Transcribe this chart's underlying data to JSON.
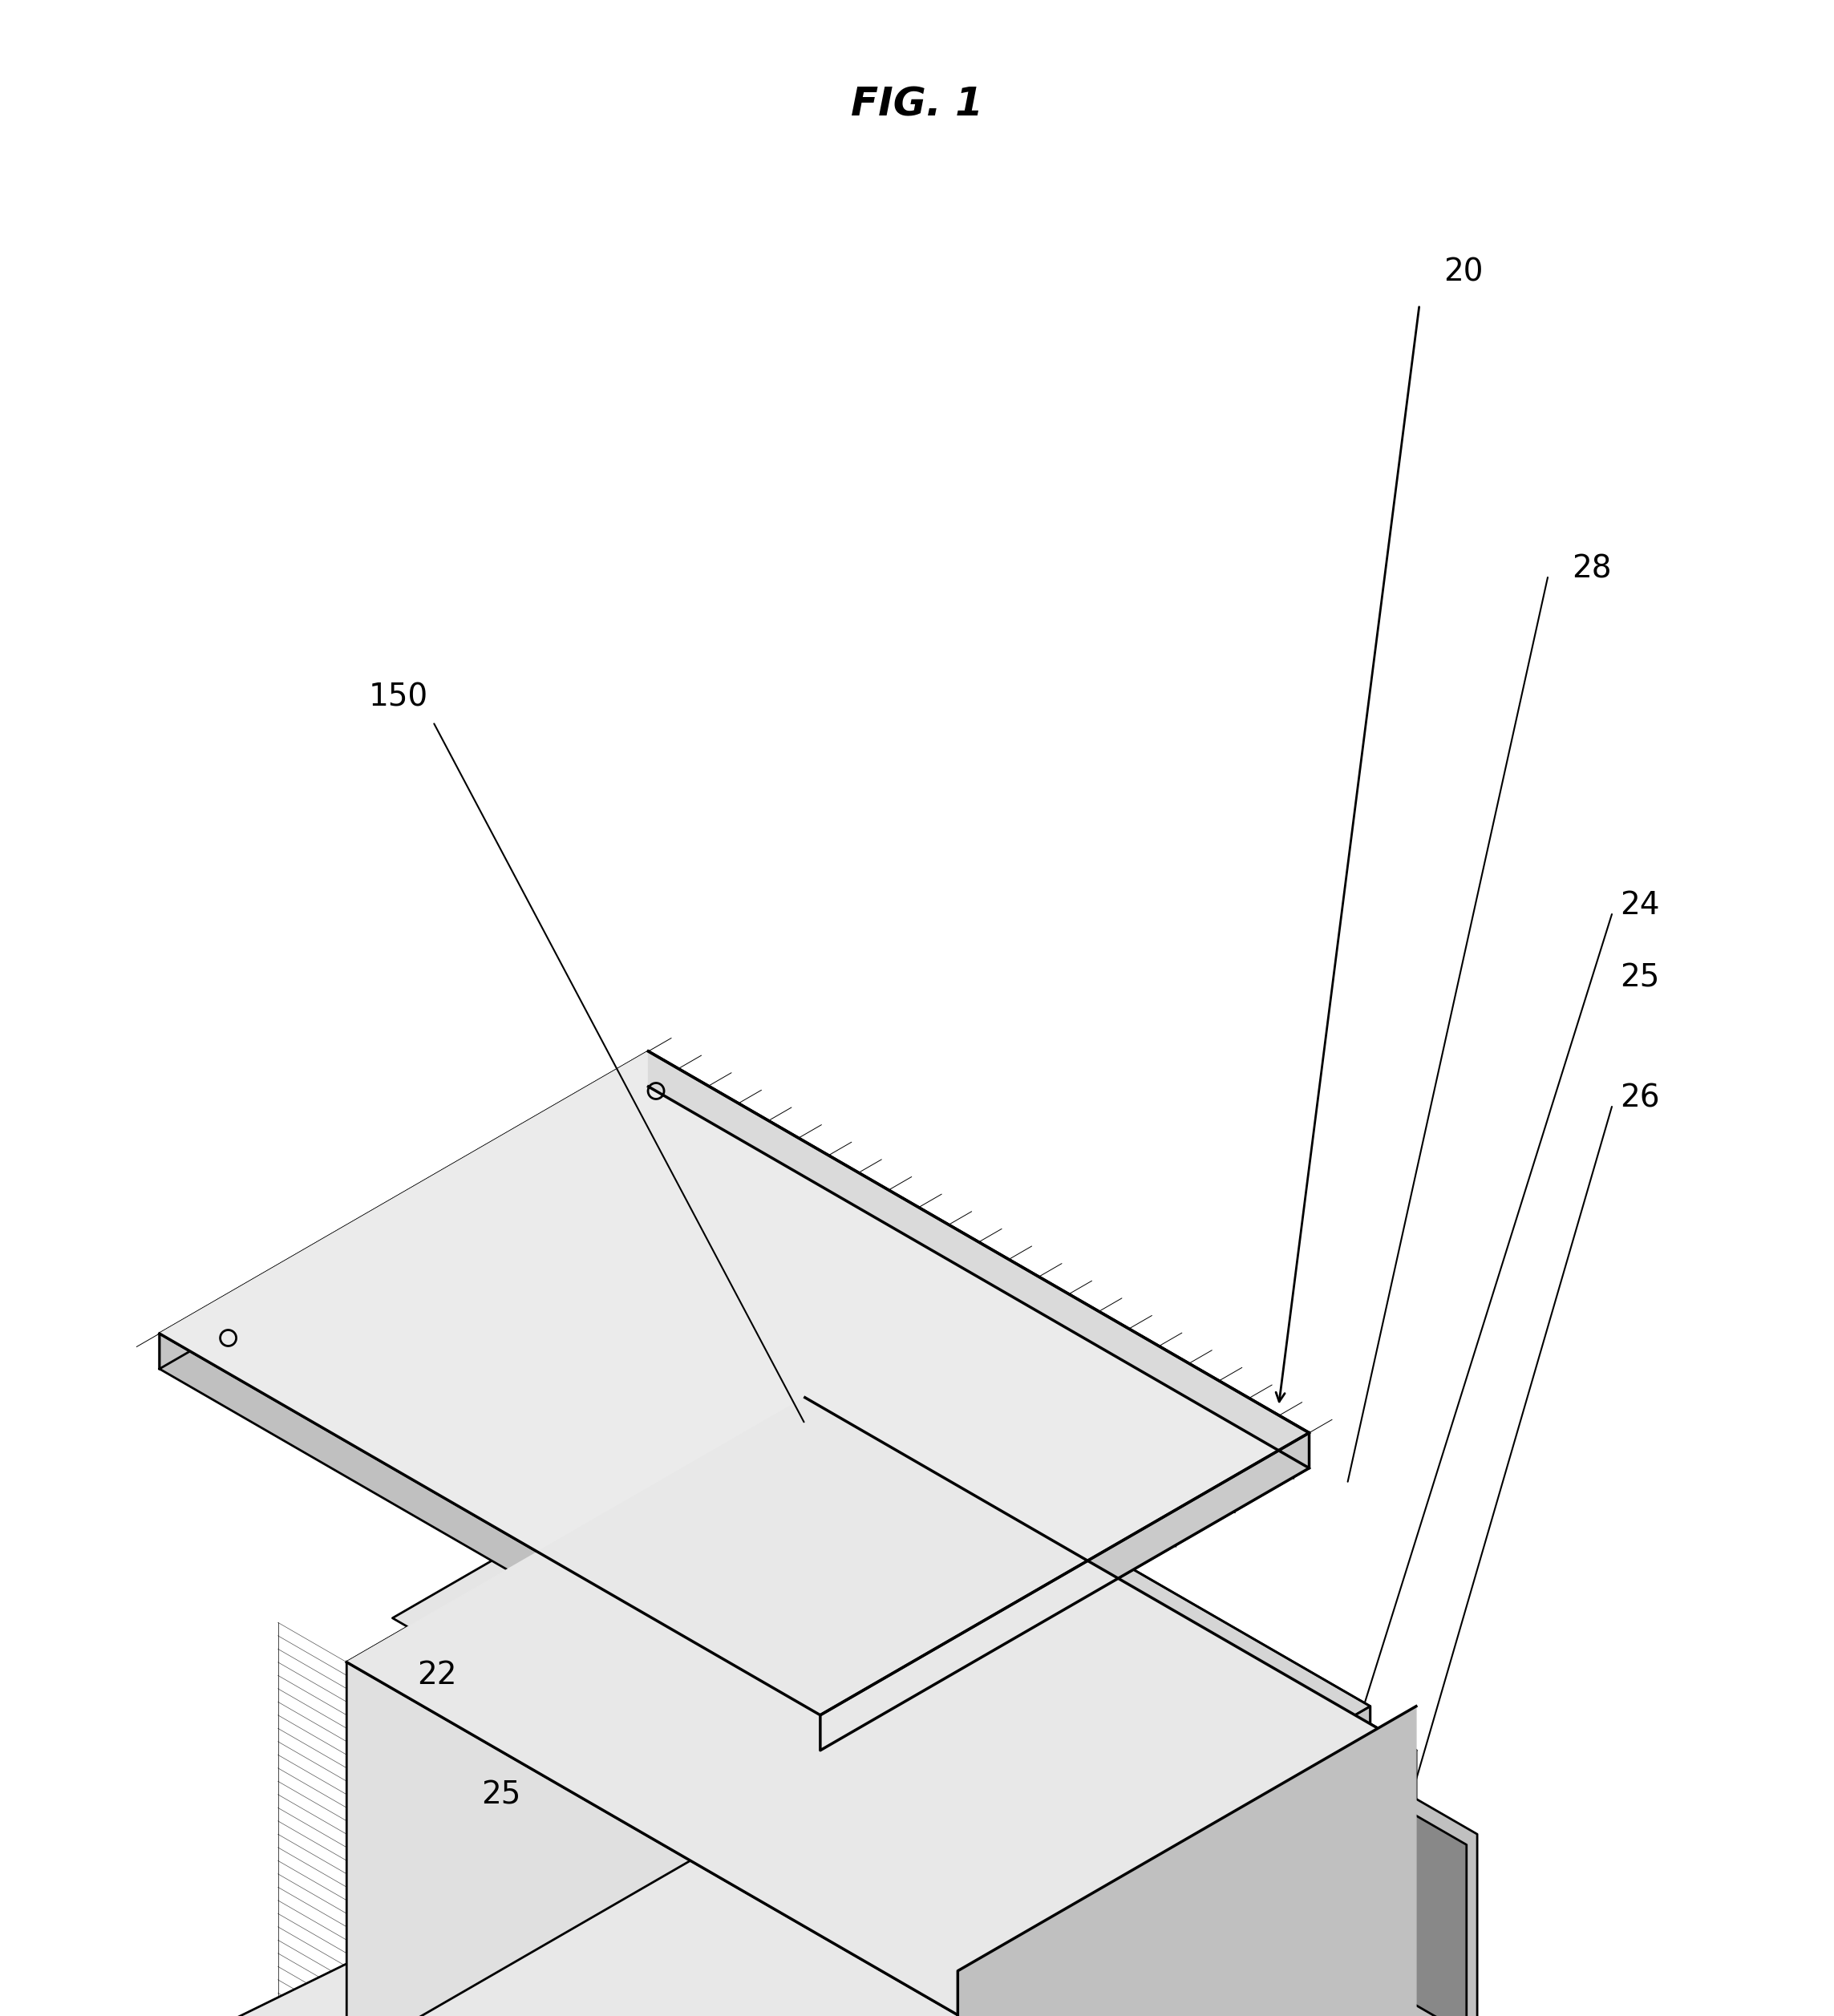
{
  "title": "FIG. 1",
  "title_font": "Times New Roman",
  "title_fontsize": 36,
  "title_style": "italic",
  "background_color": "#ffffff",
  "line_color": "#000000",
  "line_width": 1.5
}
